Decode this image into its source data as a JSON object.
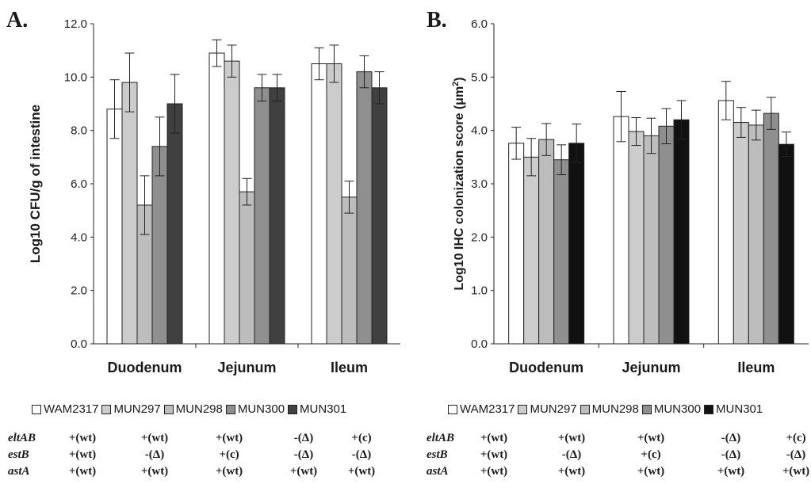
{
  "chart_data": [
    {
      "type": "bar",
      "panel_label": "A.",
      "ylabel": "Log10 CFU/g of intestine",
      "xlabel": "",
      "ylim": [
        0,
        12
      ],
      "yticks": [
        "0.0",
        "2.0",
        "4.0",
        "6.0",
        "8.0",
        "10.0",
        "12.0"
      ],
      "categories": [
        "Duodenum",
        "Jejunum",
        "Ileum"
      ],
      "series": [
        {
          "name": "WAM2317",
          "color": "#ffffff",
          "values": [
            8.8,
            10.9,
            10.5
          ],
          "errors": [
            1.1,
            0.5,
            0.6
          ]
        },
        {
          "name": "MUN297",
          "color": "#cccccc",
          "values": [
            9.8,
            10.6,
            10.5
          ],
          "errors": [
            1.1,
            0.6,
            0.7
          ]
        },
        {
          "name": "MUN298",
          "color": "#bdbdbd",
          "values": [
            5.2,
            5.7,
            5.5
          ],
          "errors": [
            1.1,
            0.5,
            0.6
          ]
        },
        {
          "name": "MUN300",
          "color": "#8f8f8f",
          "values": [
            7.4,
            9.6,
            10.2
          ],
          "errors": [
            1.1,
            0.5,
            0.6
          ]
        },
        {
          "name": "MUN301",
          "color": "#404040",
          "values": [
            9.0,
            9.6,
            9.6
          ],
          "errors": [
            1.1,
            0.5,
            0.6
          ]
        }
      ],
      "grid": false,
      "legend": "bottom"
    },
    {
      "type": "bar",
      "panel_label": "B.",
      "ylabel_text": "Log10 IHC colonization score (μm",
      "ylabel_sup": "2",
      "ylabel_close": ")",
      "xlabel": "",
      "ylim": [
        0,
        6
      ],
      "yticks": [
        "0.0",
        "1.0",
        "2.0",
        "3.0",
        "4.0",
        "5.0",
        "6.0"
      ],
      "categories": [
        "Duodenum",
        "Jejunum",
        "Ileum"
      ],
      "series": [
        {
          "name": "WAM2317",
          "color": "#ffffff",
          "values": [
            3.76,
            4.26,
            4.56
          ],
          "errors": [
            0.3,
            0.47,
            0.36
          ]
        },
        {
          "name": "MUN297",
          "color": "#cccccc",
          "values": [
            3.5,
            3.98,
            4.15
          ],
          "errors": [
            0.35,
            0.26,
            0.28
          ]
        },
        {
          "name": "MUN298",
          "color": "#bdbdbd",
          "values": [
            3.83,
            3.9,
            4.1
          ],
          "errors": [
            0.3,
            0.33,
            0.28
          ]
        },
        {
          "name": "MUN300",
          "color": "#8f8f8f",
          "values": [
            3.45,
            4.08,
            4.32
          ],
          "errors": [
            0.28,
            0.33,
            0.3
          ]
        },
        {
          "name": "MUN301",
          "color": "#111111",
          "values": [
            3.76,
            4.2,
            3.74
          ],
          "errors": [
            0.36,
            0.36,
            0.23
          ]
        }
      ],
      "grid": false,
      "legend": "bottom"
    }
  ],
  "gene_table": {
    "rows": [
      {
        "gene": "eltAB",
        "cells": [
          "+(wt)",
          "+(wt)",
          "+(wt)",
          "-(Δ)",
          "+(c)"
        ]
      },
      {
        "gene": "estB",
        "cells": [
          "+(wt)",
          "-(Δ)",
          "+(c)",
          "-(Δ)",
          "-(Δ)"
        ]
      },
      {
        "gene": "astA",
        "cells": [
          "+(wt)",
          "+(wt)",
          "+(wt)",
          "+(wt)",
          "+(wt)"
        ]
      }
    ]
  }
}
